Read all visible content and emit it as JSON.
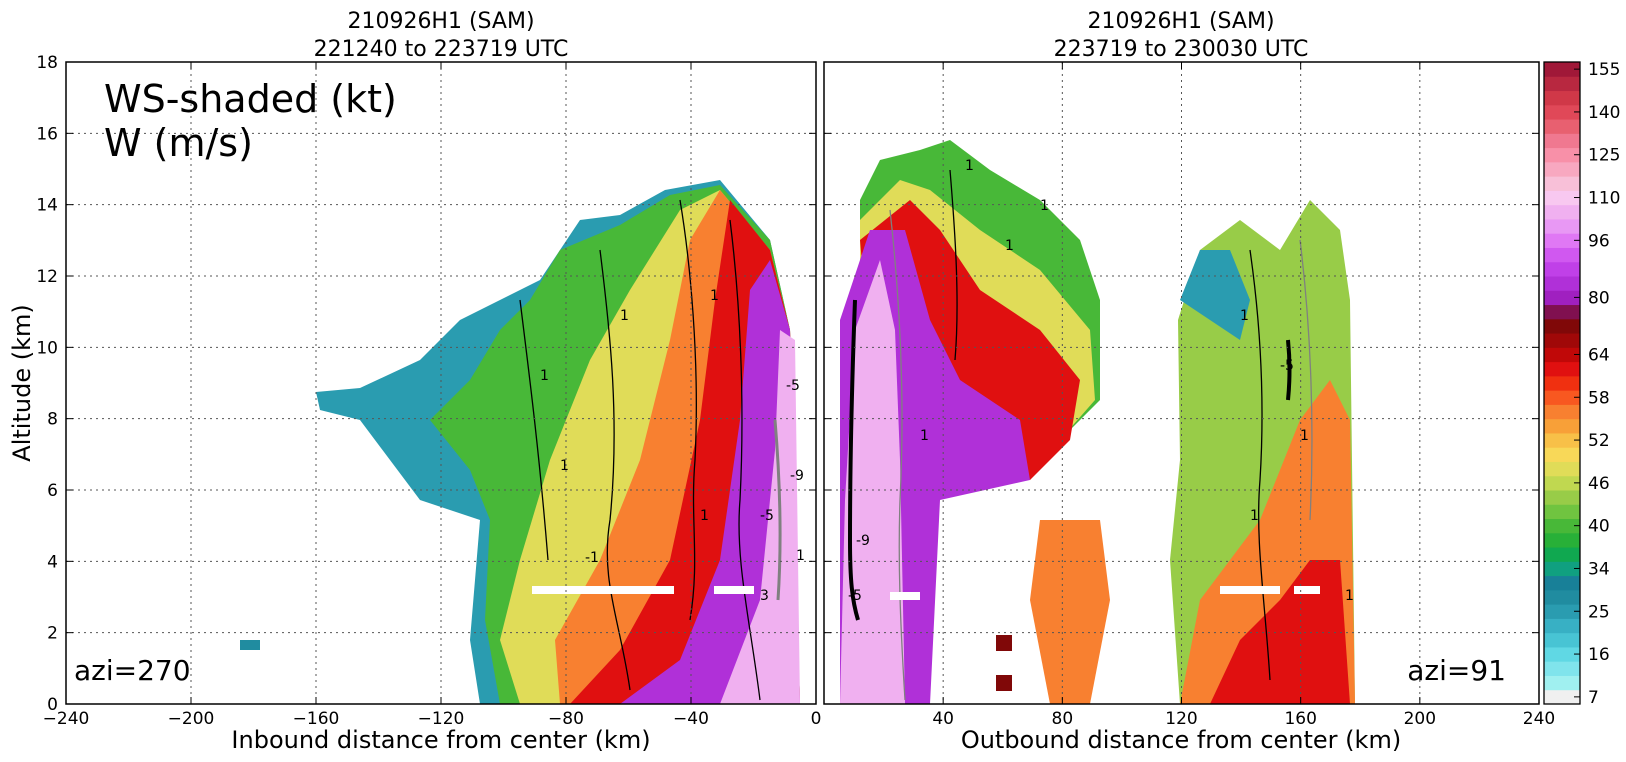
{
  "chart_data": [
    {
      "type": "heatmap",
      "panel": "inbound",
      "title_line1": "210926H1 (SAM)",
      "title_line2": "221240 to 223719 UTC",
      "xlabel": "Inbound distance from center (km)",
      "ylabel": "Altitude (km)",
      "xlim": [
        -240,
        0
      ],
      "ylim": [
        0,
        18
      ],
      "x_ticks": [
        -240,
        -200,
        -160,
        -120,
        -80,
        -40,
        0
      ],
      "y_ticks": [
        0,
        2,
        4,
        6,
        8,
        10,
        12,
        14,
        16,
        18
      ],
      "grid": true,
      "annotation_main_line1": "WS-shaded (kt)",
      "annotation_main_line2": "W (m/s)",
      "azimuth_label": "azi=270",
      "wind_bands_kt": [
        {
          "x_range": [
            -160,
            -110
          ],
          "ws": 25
        },
        {
          "x_range": [
            -110,
            -90
          ],
          "ws": 34
        },
        {
          "x_range": [
            -90,
            -60
          ],
          "ws": 40
        },
        {
          "x_range": [
            -60,
            -48
          ],
          "ws": 46
        },
        {
          "x_range": [
            -48,
            -40
          ],
          "ws": 52
        },
        {
          "x_range": [
            -40,
            -28
          ],
          "ws": 60
        },
        {
          "x_range": [
            -28,
            -18
          ],
          "ws": 80
        },
        {
          "x_range": [
            -18,
            -8
          ],
          "ws": 100
        }
      ],
      "contour_labels": [
        "1",
        "1",
        "1",
        "-1",
        "1",
        "1",
        "-5",
        "-9",
        "-5",
        "3",
        "1"
      ]
    },
    {
      "type": "heatmap",
      "panel": "outbound",
      "title_line1": "210926H1 (SAM)",
      "title_line2": "223719 to 230030 UTC",
      "xlabel": "Outbound distance from center (km)",
      "xlim": [
        0,
        240
      ],
      "ylim": [
        0,
        18
      ],
      "x_ticks": [
        0,
        40,
        80,
        120,
        160,
        200,
        240
      ],
      "grid": true,
      "azimuth_label": "azi=91",
      "wind_bands_kt": [
        {
          "x_range": [
            8,
            20
          ],
          "ws": 100
        },
        {
          "x_range": [
            20,
            38
          ],
          "ws": 80
        },
        {
          "x_range": [
            38,
            60
          ],
          "ws": 60
        },
        {
          "x_range": [
            60,
            80
          ],
          "ws": 46
        },
        {
          "x_range": [
            80,
            95
          ],
          "ws": 40
        },
        {
          "x_range": [
            115,
            140
          ],
          "ws": 40
        },
        {
          "x_range": [
            140,
            170
          ],
          "ws": 52
        },
        {
          "x_range": [
            170,
            180
          ],
          "ws": 34
        }
      ],
      "contour_labels": [
        "1",
        "1",
        "1",
        "-9",
        "-5",
        "1",
        "1",
        "-5",
        "1",
        "1",
        "1"
      ]
    }
  ],
  "colorbar": {
    "tick_labels": [
      "155",
      "140",
      "125",
      "110",
      "96",
      "80",
      "64",
      "58",
      "52",
      "46",
      "40",
      "34",
      "25",
      "16",
      "7"
    ],
    "tick_values": [
      155,
      140,
      125,
      110,
      96,
      80,
      64,
      58,
      52,
      46,
      40,
      34,
      25,
      16,
      7
    ],
    "levels": [
      7,
      10,
      13,
      16,
      19,
      22,
      25,
      28,
      31,
      34,
      36,
      38,
      40,
      42,
      44,
      46,
      48,
      50,
      52,
      54,
      56,
      58,
      60,
      62,
      64,
      68,
      72,
      76,
      80,
      84,
      88,
      92,
      96,
      101,
      106,
      110,
      115,
      120,
      125,
      130,
      135,
      140,
      145,
      150,
      155,
      160
    ],
    "colors": [
      "#f0f0f0",
      "#a0f0f0",
      "#80e4ec",
      "#60d8e4",
      "#48c4d4",
      "#38b0c4",
      "#2a9cb0",
      "#208ca0",
      "#188098",
      "#10a080",
      "#10a850",
      "#28b038",
      "#48b838",
      "#70c440",
      "#98cc48",
      "#c0d850",
      "#e0dc58",
      "#f8d858",
      "#f8c048",
      "#f8a038",
      "#f88030",
      "#f85820",
      "#f03010",
      "#e01010",
      "#c00808",
      "#a00808",
      "#800808",
      "#801050",
      "#a020c0",
      "#b030d8",
      "#c040e8",
      "#d058f0",
      "#e078f4",
      "#e898f4",
      "#f0b0f0",
      "#f8c8f0",
      "#f8c0d8",
      "#f8a8c0",
      "#f890a8",
      "#f07890",
      "#e86070",
      "#e04858",
      "#d03848",
      "#b82840",
      "#a01838"
    ]
  }
}
